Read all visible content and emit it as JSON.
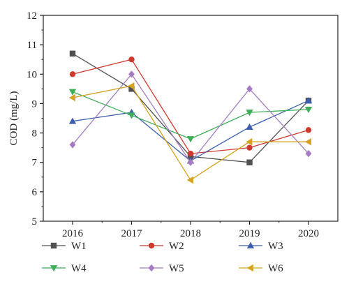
{
  "chart_data": {
    "type": "line",
    "title": "",
    "xlabel": "",
    "ylabel": "COD (mg/L)",
    "x": [
      2016,
      2017,
      2018,
      2019,
      2020
    ],
    "ylim": [
      5,
      12
    ],
    "yticks": [
      5,
      6,
      7,
      8,
      9,
      10,
      11,
      12
    ],
    "grid": false,
    "legend_position": "bottom",
    "series": [
      {
        "name": "W1",
        "values": [
          10.7,
          9.5,
          7.2,
          7.0,
          9.1
        ],
        "color": "#505050",
        "marker": "square"
      },
      {
        "name": "W2",
        "values": [
          10.0,
          10.5,
          7.3,
          7.5,
          8.1
        ],
        "color": "#d03a2e",
        "marker": "circle"
      },
      {
        "name": "W3",
        "values": [
          8.4,
          8.7,
          7.05,
          8.2,
          9.1
        ],
        "color": "#3a5fae",
        "marker": "triangle-up"
      },
      {
        "name": "W4",
        "values": [
          9.4,
          8.6,
          7.8,
          8.7,
          8.8
        ],
        "color": "#3fae58",
        "marker": "triangle-down"
      },
      {
        "name": "W5",
        "values": [
          7.6,
          10.0,
          7.0,
          9.5,
          7.3
        ],
        "color": "#a57cc4",
        "marker": "diamond"
      },
      {
        "name": "W6",
        "values": [
          9.2,
          9.6,
          6.4,
          7.7,
          7.7
        ],
        "color": "#d7a21d",
        "marker": "triangle-left"
      }
    ]
  }
}
